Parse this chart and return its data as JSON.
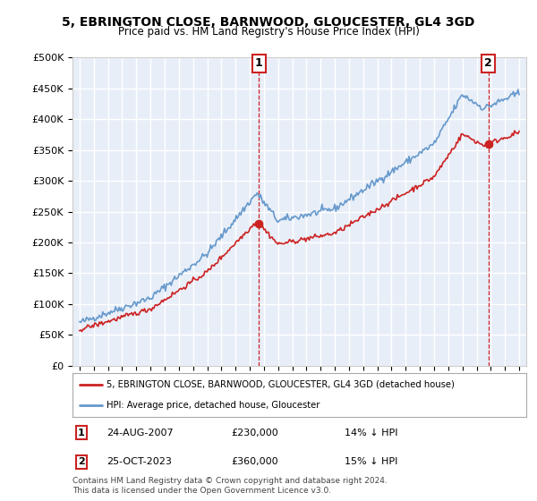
{
  "title": "5, EBRINGTON CLOSE, BARNWOOD, GLOUCESTER, GL4 3GD",
  "subtitle": "Price paid vs. HM Land Registry's House Price Index (HPI)",
  "ylim": [
    0,
    500000
  ],
  "yticks": [
    0,
    50000,
    100000,
    150000,
    200000,
    250000,
    300000,
    350000,
    400000,
    450000,
    500000
  ],
  "ytick_labels": [
    "£0",
    "£50K",
    "£100K",
    "£150K",
    "£200K",
    "£250K",
    "£300K",
    "£350K",
    "£400K",
    "£450K",
    "£500K"
  ],
  "xlim_start": 1994.5,
  "xlim_end": 2026.5,
  "hpi_color": "#6699cc",
  "price_color": "#cc2222",
  "marker_color": "#cc2222",
  "sale1_x": 2007.646,
  "sale1_y": 230000,
  "sale2_x": 2023.831,
  "sale2_y": 360000,
  "legend_box_label1": "5, EBRINGTON CLOSE, BARNWOOD, GLOUCESTER, GL4 3GD (detached house)",
  "legend_box_label2": "HPI: Average price, detached house, Gloucester",
  "annotation1_date": "24-AUG-2007",
  "annotation1_price": "£230,000",
  "annotation1_hpi": "14% ↓ HPI",
  "annotation2_date": "25-OCT-2023",
  "annotation2_price": "£360,000",
  "annotation2_hpi": "15% ↓ HPI",
  "footer": "Contains HM Land Registry data © Crown copyright and database right 2024.\nThis data is licensed under the Open Government Licence v3.0.",
  "background_color": "#ffffff",
  "plot_bg_color": "#e8eef8",
  "grid_color": "#ffffff"
}
